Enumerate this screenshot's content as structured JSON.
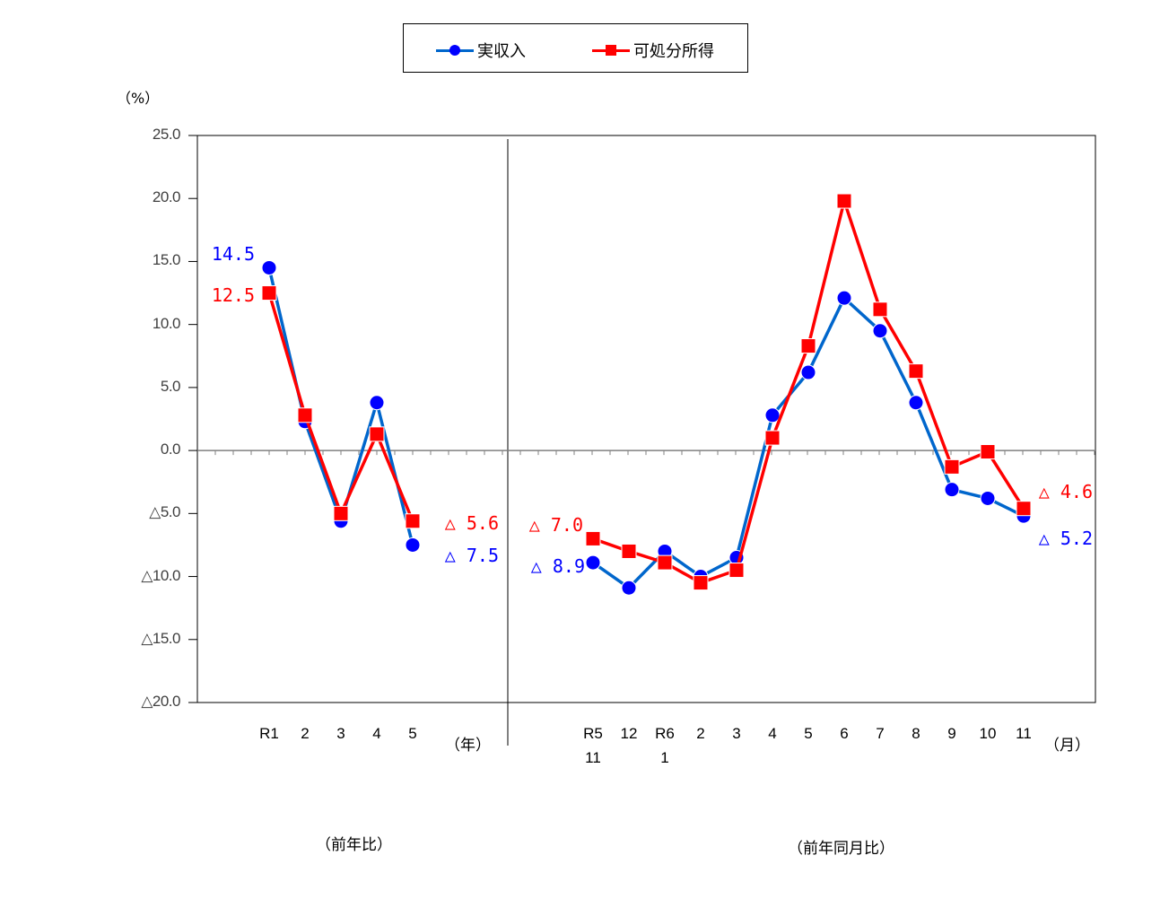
{
  "legend": {
    "items": [
      {
        "label": "実収入",
        "color": "#0000ff",
        "line_color": "#0066cc",
        "marker": "circle"
      },
      {
        "label": "可処分所得",
        "color": "#ff0000",
        "line_color": "#ff0000",
        "marker": "square"
      }
    ]
  },
  "axis": {
    "unit_label": "（%）",
    "y_ticks": [
      "25.0",
      "20.0",
      "15.0",
      "10.0",
      "5.0",
      "0.0",
      "△5.0",
      "△10.0",
      "△15.0",
      "△20.0"
    ],
    "annual_unit": "（年）",
    "monthly_unit": "（月）",
    "annual_section_label": "（前年比）",
    "monthly_section_label": "（前年同月比）"
  },
  "annotations": {
    "annual_first_blue": "14.5",
    "annual_first_red": "12.5",
    "annual_last_red": "△ 5.6",
    "annual_last_blue": "△ 7.5",
    "monthly_first_red": "△ 7.0",
    "monthly_first_blue": "△ 8.9",
    "monthly_last_red": "△ 4.6",
    "monthly_last_blue": "△ 5.2"
  },
  "chart_data": [
    {
      "type": "line",
      "title": "前年比",
      "categories": [
        "R1",
        "2",
        "3",
        "4",
        "5"
      ],
      "xlabel": "（年）",
      "ylabel": "（%）",
      "ylim": [
        -20,
        25
      ],
      "series": [
        {
          "name": "実収入",
          "values": [
            14.5,
            2.3,
            -5.6,
            3.8,
            -7.5
          ]
        },
        {
          "name": "可処分所得",
          "values": [
            12.5,
            2.8,
            -5.0,
            1.3,
            -5.6
          ]
        }
      ],
      "grid": false,
      "legend_position": "top"
    },
    {
      "type": "line",
      "title": "前年同月比",
      "categories": [
        "R5\n11",
        "12",
        "R6\n1",
        "2",
        "3",
        "4",
        "5",
        "6",
        "7",
        "8",
        "9",
        "10",
        "11"
      ],
      "category_lines": [
        [
          "R5",
          "11"
        ],
        [
          "12"
        ],
        [
          "R6",
          "1"
        ],
        [
          "2"
        ],
        [
          "3"
        ],
        [
          "4"
        ],
        [
          "5"
        ],
        [
          "6"
        ],
        [
          "7"
        ],
        [
          "8"
        ],
        [
          "9"
        ],
        [
          "10"
        ],
        [
          "11"
        ]
      ],
      "xlabel": "（月）",
      "ylabel": "（%）",
      "ylim": [
        -20,
        25
      ],
      "series": [
        {
          "name": "実収入",
          "values": [
            -8.9,
            -10.9,
            -8.0,
            -10.0,
            -8.5,
            2.8,
            6.2,
            12.1,
            9.5,
            3.8,
            -3.1,
            -3.8,
            -5.2
          ]
        },
        {
          "name": "可処分所得",
          "values": [
            -7.0,
            -8.0,
            -8.9,
            -10.5,
            -9.5,
            1.0,
            8.3,
            19.8,
            11.2,
            6.3,
            -1.3,
            -0.1,
            -4.6
          ]
        }
      ],
      "grid": false,
      "legend_position": "top"
    }
  ]
}
